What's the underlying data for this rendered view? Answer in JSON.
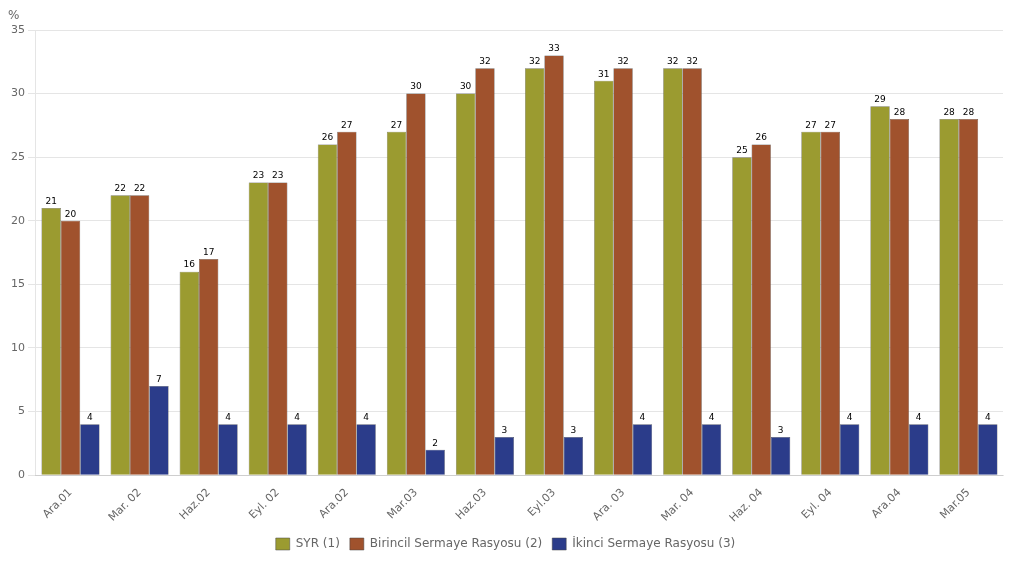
{
  "chart_data": {
    "type": "bar",
    "categories": [
      "Ara.01",
      "Mar. 02",
      "Haz.02",
      "Eyl. 02",
      "Ara.02",
      "Mar.03",
      "Haz.03",
      "Eyl.03",
      "Ara. 03",
      "Mar. 04",
      "Haz. 04",
      "Eyl. 04",
      "Ara.04",
      "Mar.05"
    ],
    "series": [
      {
        "name": "SYR (1)",
        "color": "#9b9b30",
        "values": [
          21,
          22,
          16,
          23,
          26,
          27,
          30,
          32,
          31,
          32,
          25,
          27,
          29,
          28
        ]
      },
      {
        "name": "Birincil Sermaye Rasyosu (2)",
        "color": "#a0522d",
        "values": [
          20,
          22,
          17,
          23,
          27,
          30,
          32,
          33,
          32,
          32,
          26,
          27,
          28,
          28
        ]
      },
      {
        "name": "İkinci Sermaye Rasyosu (3)",
        "color": "#2b3c8a",
        "values": [
          4,
          7,
          4,
          4,
          4,
          2,
          3,
          3,
          4,
          4,
          3,
          4,
          4,
          4
        ]
      }
    ],
    "ylabel": "%",
    "ylim": [
      0,
      35
    ],
    "yticks": [
      0,
      5,
      10,
      15,
      20,
      25,
      30,
      35
    ],
    "grid": true,
    "legend": "bottom",
    "data_labels": true
  }
}
